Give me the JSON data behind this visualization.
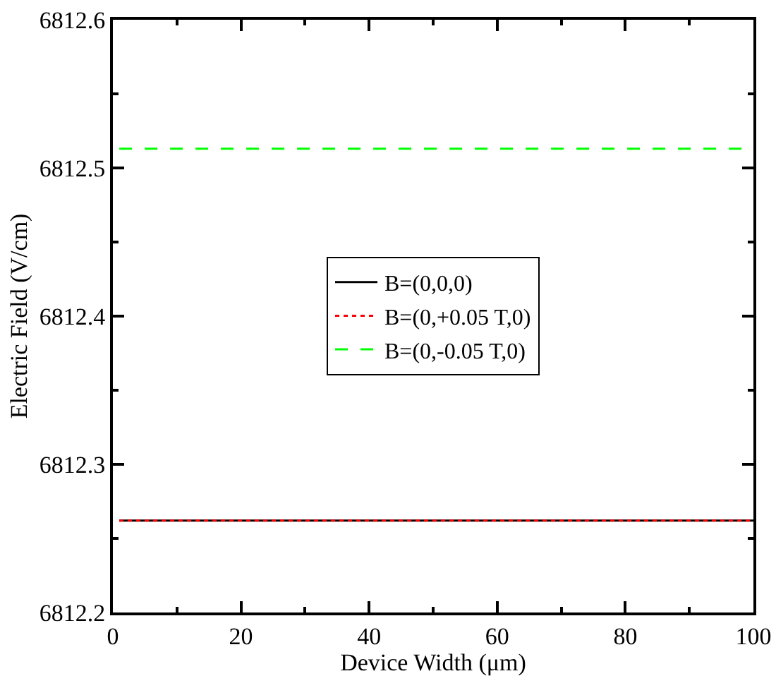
{
  "chart_data": {
    "type": "line",
    "xlabel": "Device Width (μm)",
    "ylabel": "Electric Field (V/cm)",
    "x": [
      1,
      100
    ],
    "series": [
      {
        "name": "B=(0,0,0)",
        "color": "#000000",
        "values": [
          6812.262,
          6812.262
        ],
        "line_style": "solid"
      },
      {
        "name": "B=(0,+0.05 T,0)",
        "color": "#ff0000",
        "values": [
          6812.262,
          6812.262
        ],
        "line_style": "dotted"
      },
      {
        "name": "B=(0,-0.05 T,0)",
        "color": "#00ff00",
        "values": [
          6812.513,
          6812.513
        ],
        "line_style": "dashed"
      }
    ],
    "xlim": [
      0,
      100
    ],
    "xticks": [
      0,
      20,
      40,
      60,
      80,
      100
    ],
    "ylim": [
      6812.2,
      6812.6
    ],
    "yticks": [
      6812.2,
      6812.3,
      6812.4,
      6812.5,
      6812.6
    ],
    "grid": false,
    "legend": "center",
    "marker": "none"
  }
}
